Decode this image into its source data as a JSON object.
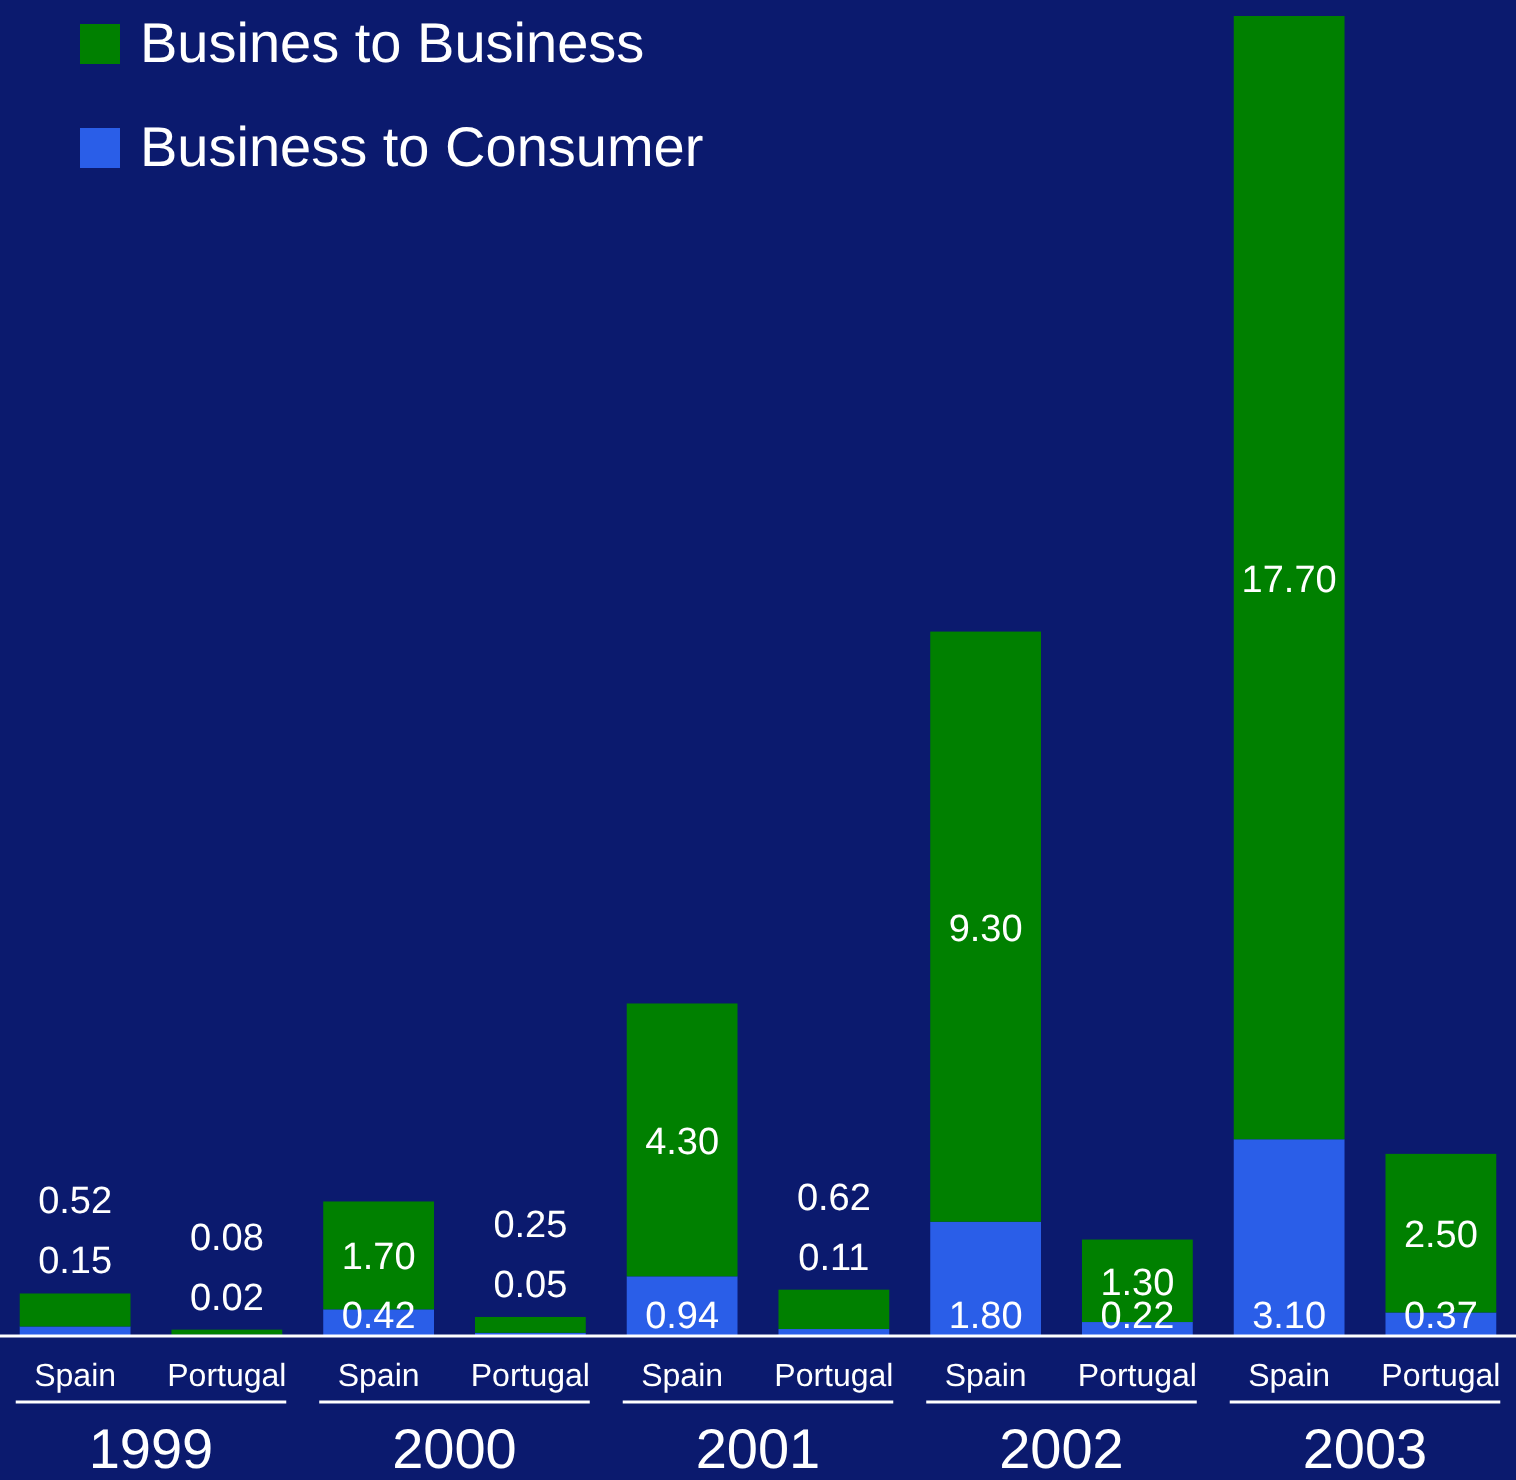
{
  "chart_data": {
    "type": "bar",
    "stacked": true,
    "legend": "top left",
    "categories": [
      "Spain",
      "Portugal",
      "Spain",
      "Portugal",
      "Spain",
      "Portugal",
      "Spain",
      "Portugal",
      "Spain",
      "Portugal"
    ],
    "series": [
      {
        "name": "Business to Consumer",
        "color": "#2a5ee8",
        "values": [
          0.15,
          0.02,
          0.42,
          0.05,
          0.94,
          0.11,
          1.8,
          0.22,
          3.1,
          0.37
        ],
        "value_labels": [
          "0.15",
          "0.02",
          "0.42",
          "0.05",
          "0.94",
          "0.11",
          "1.80",
          "0.22",
          "3.10",
          "0.37"
        ]
      },
      {
        "name": "Busines to Business",
        "color": "#008000",
        "values": [
          0.52,
          0.08,
          1.7,
          0.25,
          4.3,
          0.62,
          9.3,
          1.3,
          17.7,
          2.5
        ],
        "value_labels": [
          "0.52",
          "0.08",
          "1.70",
          "0.25",
          "4.30",
          "0.62",
          "9.30",
          "1.30",
          "17.70",
          "2.50"
        ]
      }
    ],
    "annotations": [
      "1999",
      "2000",
      "2001",
      "2002",
      "2003"
    ]
  }
}
